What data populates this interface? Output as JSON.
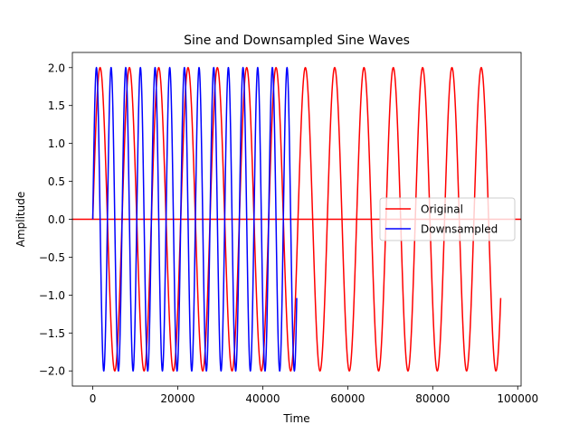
{
  "chart_data": {
    "type": "line",
    "title": "Sine and Downsampled Sine Waves",
    "xlabel": "Time",
    "ylabel": "Amplitude",
    "xlim": [
      -4800,
      100800
    ],
    "ylim": [
      -2.2,
      2.2
    ],
    "xticks": [
      0,
      20000,
      40000,
      60000,
      80000,
      100000
    ],
    "xtick_labels": [
      "0",
      "20000",
      "40000",
      "60000",
      "80000",
      "100000"
    ],
    "yticks": [
      -2.0,
      -1.5,
      -1.0,
      -0.5,
      0.0,
      0.5,
      1.0,
      1.5,
      2.0
    ],
    "ytick_labels": [
      "−2.0",
      "−1.5",
      "−1.0",
      "−0.5",
      "0.0",
      "0.5",
      "1.0",
      "1.5",
      "2.0"
    ],
    "grid": false,
    "legend_position": "center-right",
    "series": [
      {
        "name": "Original",
        "color": "#ff0000",
        "amplitude": 2,
        "period": 6900,
        "x_start": 0,
        "x_end": 96000,
        "baseline_to": 100800
      },
      {
        "name": "Downsampled",
        "color": "#0000ff",
        "amplitude": 2,
        "period": 3450,
        "x_start": 0,
        "x_end": 48000
      }
    ]
  }
}
